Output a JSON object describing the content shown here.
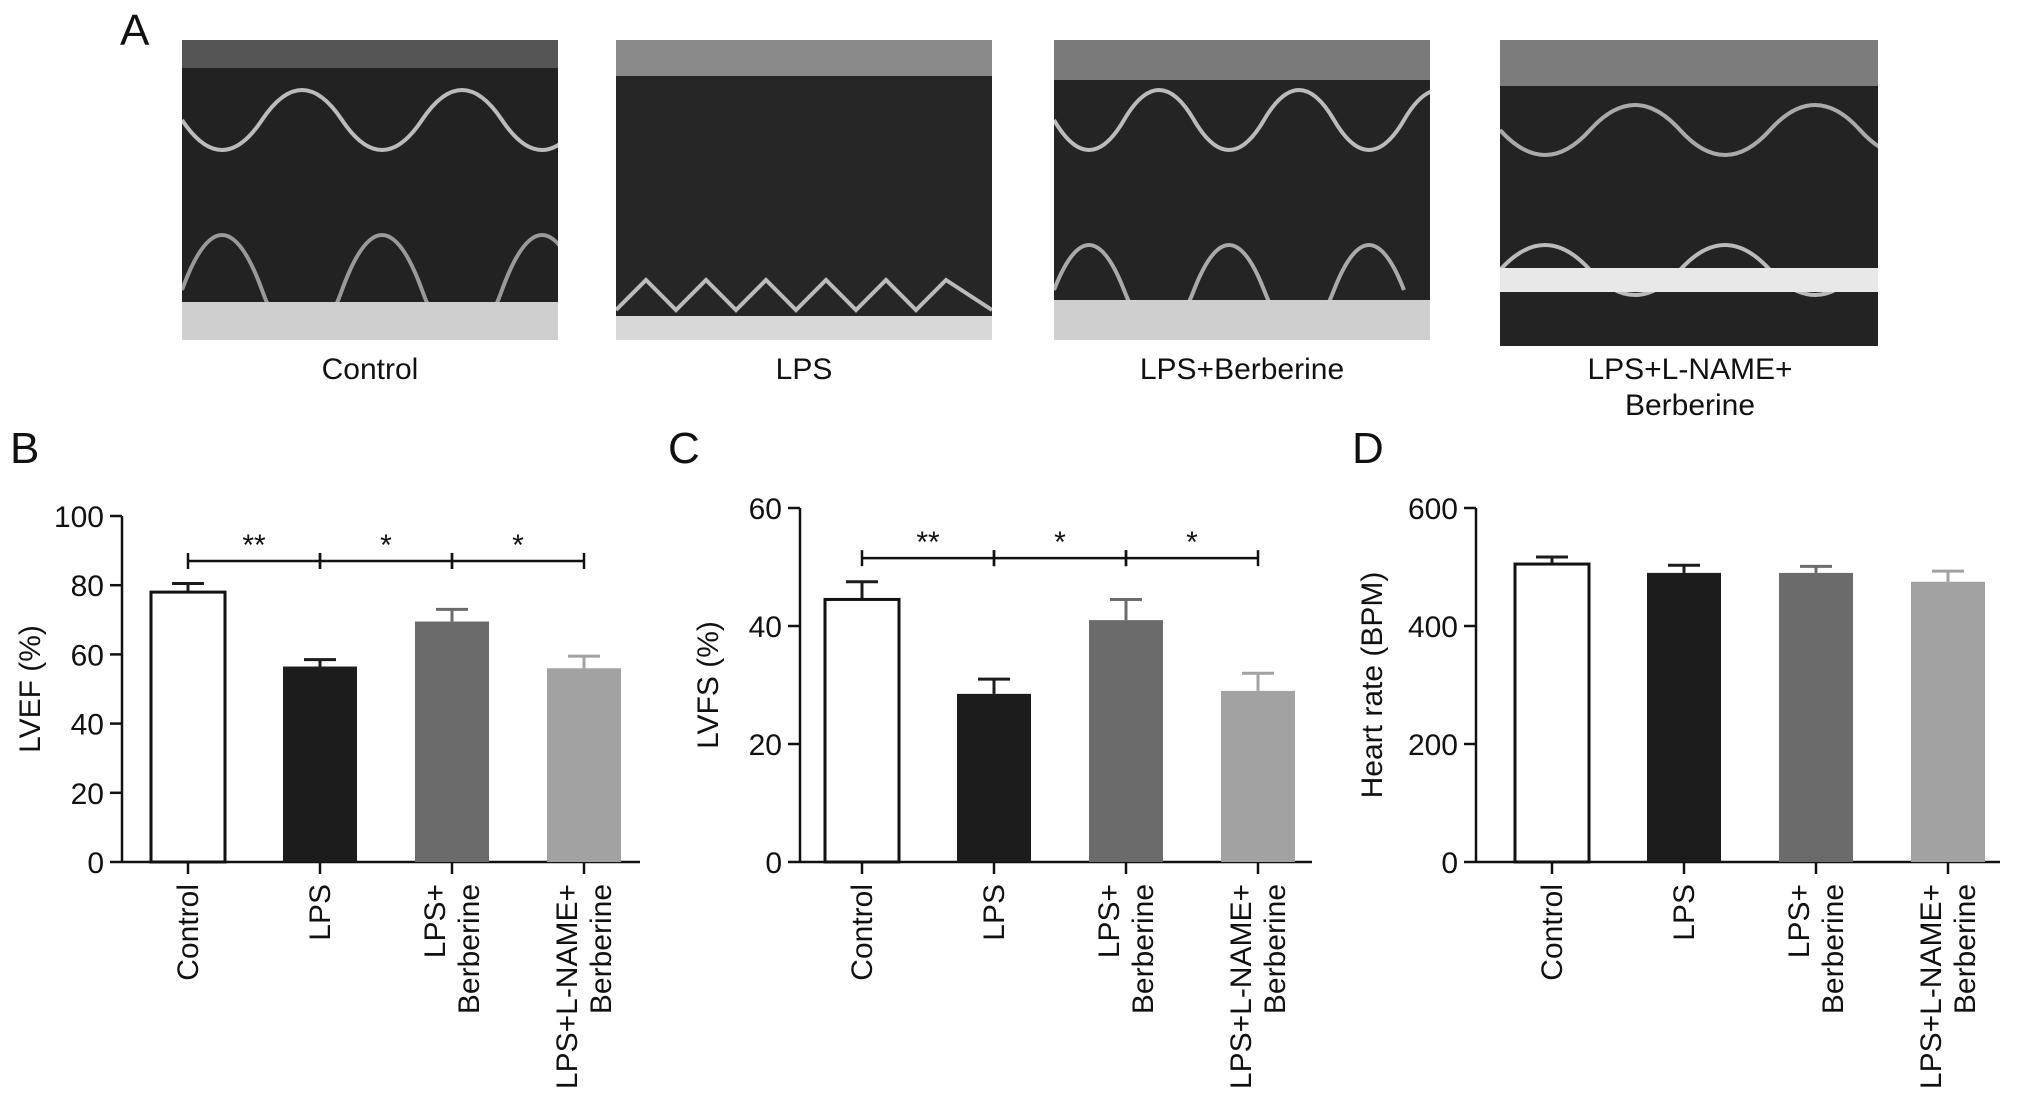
{
  "panels": {
    "a": "A",
    "b": "B",
    "c": "C",
    "d": "D"
  },
  "echo": {
    "labels": [
      "Control",
      "LPS",
      "LPS+Berberine",
      "LPS+L-NAME+\nBerberine"
    ]
  },
  "colors": {
    "Control": "#ffffff",
    "LPS": "#1c1c1c",
    "LPS+Berberine": "#6b6b6b",
    "LPS+L-NAME+Berberine": "#a2a2a2"
  },
  "chart_data": [
    {
      "panel": "B",
      "type": "bar",
      "categories": [
        "Control",
        "LPS",
        "LPS+\nBerberine",
        "LPS+L-NAME+\nBerberine"
      ],
      "values": [
        78,
        56.5,
        69.5,
        56
      ],
      "errors": [
        2.5,
        2,
        3.5,
        3.5
      ],
      "ylabel": "LVEF (%)",
      "ylim": [
        0,
        100
      ],
      "yticks": [
        0,
        20,
        40,
        60,
        80,
        100
      ],
      "significance": [
        {
          "from": 0,
          "to": 1,
          "label": "**"
        },
        {
          "from": 1,
          "to": 2,
          "label": "*"
        },
        {
          "from": 2,
          "to": 3,
          "label": "*"
        }
      ],
      "significance_y": 87
    },
    {
      "panel": "C",
      "type": "bar",
      "categories": [
        "Control",
        "LPS",
        "LPS+\nBerberine",
        "LPS+L-NAME+\nBerberine"
      ],
      "values": [
        44.5,
        28.5,
        41,
        29
      ],
      "errors": [
        3,
        2.5,
        3.5,
        3
      ],
      "ylabel": "LVFS (%)",
      "ylim": [
        0,
        60
      ],
      "yticks": [
        0,
        20,
        40,
        60
      ],
      "significance": [
        {
          "from": 0,
          "to": 1,
          "label": "**"
        },
        {
          "from": 1,
          "to": 2,
          "label": "*"
        },
        {
          "from": 2,
          "to": 3,
          "label": "*"
        }
      ],
      "significance_y": 51.5
    },
    {
      "panel": "D",
      "type": "bar",
      "categories": [
        "Control",
        "LPS",
        "LPS+\nBerberine",
        "LPS+L-NAME+\nBerberine"
      ],
      "values": [
        505,
        490,
        490,
        475
      ],
      "errors": [
        12,
        13,
        11,
        18
      ],
      "ylabel": "Heart rate (BPM)",
      "ylim": [
        0,
        600
      ],
      "yticks": [
        0,
        200,
        400,
        600
      ],
      "significance": [],
      "significance_y": null
    }
  ]
}
